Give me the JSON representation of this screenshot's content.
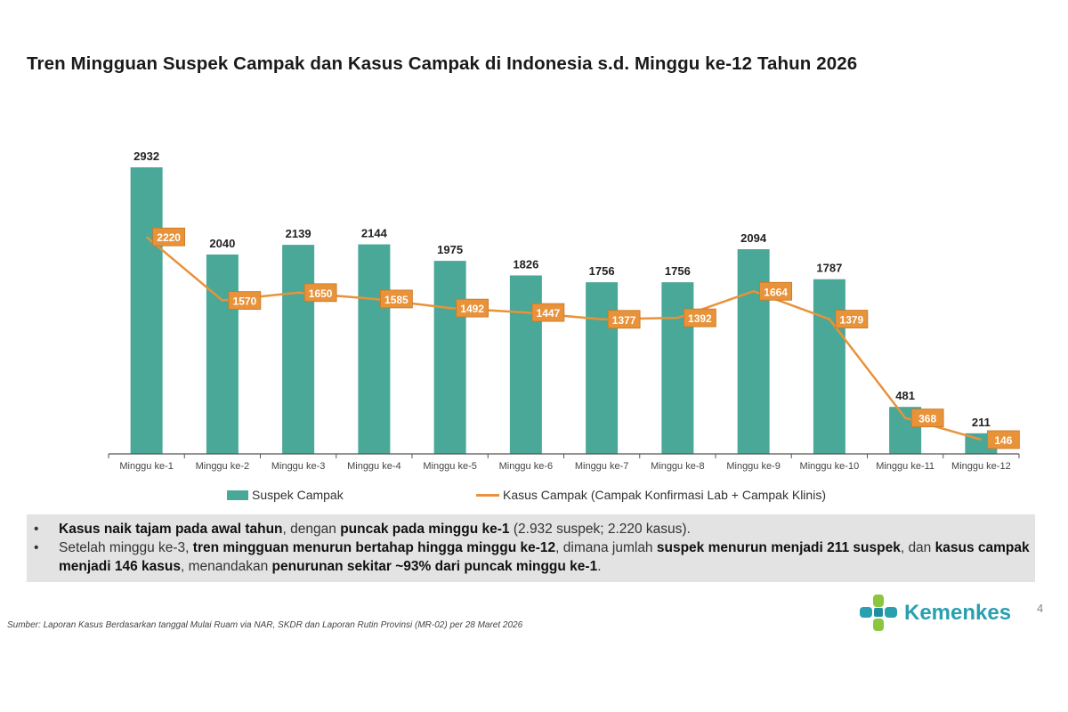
{
  "title": "Tren Mingguan Suspek Campak dan Kasus Campak di Indonesia s.d. Minggu ke-12 Tahun 2026",
  "chart_data": {
    "type": "bar+line",
    "title": "Tren Mingguan Suspek Campak dan Kasus Campak di Indonesia s.d. Minggu ke-12 Tahun 2026",
    "categories": [
      "Minggu ke-1",
      "Minggu ke-2",
      "Minggu ke-3",
      "Minggu ke-4",
      "Minggu ke-5",
      "Minggu ke-6",
      "Minggu ke-7",
      "Minggu ke-8",
      "Minggu ke-9",
      "Minggu ke-10",
      "Minggu ke-11",
      "Minggu ke-12"
    ],
    "series": [
      {
        "name": "Suspek Campak",
        "type": "bar",
        "color": "#4aa898",
        "values": [
          2932,
          2040,
          2139,
          2144,
          1975,
          1826,
          1756,
          1756,
          2094,
          1787,
          481,
          211
        ]
      },
      {
        "name": "Kasus Campak (Campak Konfirmasi Lab + Campak Klinis)",
        "type": "line",
        "color": "#e8923a",
        "values": [
          2220,
          1570,
          1650,
          1585,
          1492,
          1447,
          1377,
          1392,
          1664,
          1379,
          368,
          146
        ]
      }
    ],
    "ylim": [
      0,
      2932
    ],
    "grid": false,
    "legend": "bottom",
    "data_labels": true
  },
  "notes": [
    [
      {
        "t": "Kasus naik tajam pada awal tahun",
        "b": true
      },
      {
        "t": ", dengan ",
        "b": false
      },
      {
        "t": "puncak pada minggu ke-1",
        "b": true
      },
      {
        "t": " (2.932 suspek; 2.220 kasus).",
        "b": false
      }
    ],
    [
      {
        "t": "Setelah minggu ke-3, ",
        "b": false
      },
      {
        "t": "tren mingguan menurun bertahap hingga minggu ke-12",
        "b": true
      },
      {
        "t": ", dimana jumlah ",
        "b": false
      },
      {
        "t": "suspek menurun menjadi 211 suspek",
        "b": true
      },
      {
        "t": ", dan ",
        "b": false
      },
      {
        "t": "kasus campak menjadi 146 kasus",
        "b": true
      },
      {
        "t": ", menandakan ",
        "b": false
      },
      {
        "t": "penurunan sekitar ~93% dari puncak minggu ke-1",
        "b": true
      },
      {
        "t": ".",
        "b": false
      }
    ]
  ],
  "source": "Sumber: Laporan Kasus Berdasarkan tanggal Mulai Ruam via  NAR, SKDR dan  Laporan Rutin Provinsi (MR-02) per 28 Maret  2026",
  "logo": "Kemenkes",
  "page_number": "4"
}
